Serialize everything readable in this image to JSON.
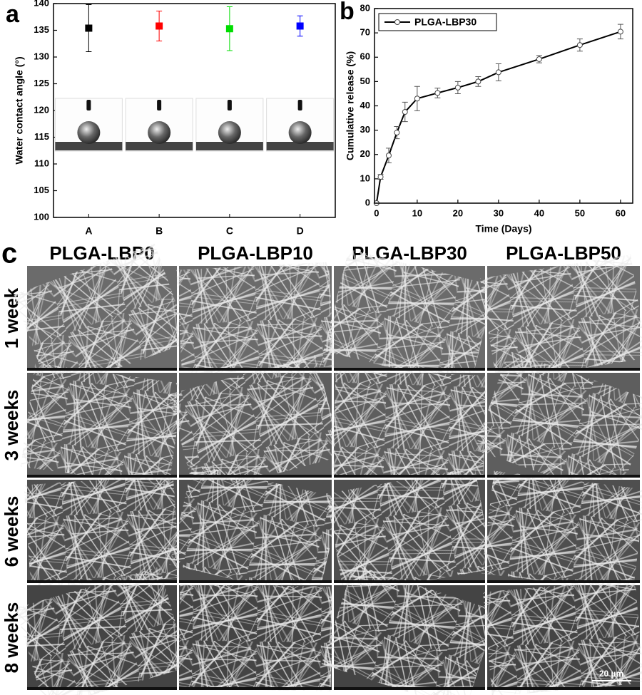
{
  "chart_data": [
    {
      "type": "scatter",
      "panel_label": "a",
      "y_label": "Water contact angle (°)",
      "categories": [
        "A",
        "B",
        "C",
        "D"
      ],
      "values": [
        135.4,
        135.8,
        135.3,
        135.8
      ],
      "errors": [
        4.4,
        2.8,
        4.1,
        1.9
      ],
      "colors": [
        "#000000",
        "#ff0000",
        "#00dd00",
        "#0000ff"
      ],
      "ylim": [
        100,
        140
      ],
      "yticks": [
        100,
        105,
        110,
        115,
        120,
        125,
        130,
        135,
        140
      ]
    },
    {
      "type": "line",
      "panel_label": "b",
      "x_label": "Time (Days)",
      "y_label": "Cumulative release (%)",
      "x": [
        0,
        1,
        3,
        5,
        7,
        10,
        15,
        20,
        25,
        30,
        40,
        50,
        60
      ],
      "series": [
        {
          "name": "PLGA-LBP30",
          "color": "#000000",
          "values": [
            0,
            10.8,
            19.6,
            29,
            37.5,
            43,
            45.3,
            47.5,
            50,
            53.8,
            59.2,
            65,
            70.5
          ],
          "errors": [
            0,
            1,
            3,
            2.5,
            4,
            5,
            2,
            2.5,
            2,
            3.5,
            1.5,
            2.5,
            3
          ]
        }
      ],
      "xlim": [
        -0.5,
        63
      ],
      "xticks": [
        0,
        10,
        20,
        30,
        40,
        50,
        60
      ],
      "ylim": [
        0,
        80
      ],
      "yticks": [
        0,
        10,
        20,
        30,
        40,
        50,
        60,
        70,
        80
      ],
      "legend": "upper left"
    }
  ],
  "sem_panel": {
    "panel_label": "c",
    "columns": [
      "PLGA-LBP0",
      "PLGA-LBP10",
      "PLGA-LBP30",
      "PLGA-LBP50"
    ],
    "rows": [
      "1 week",
      "3 weeks",
      "6 weeks",
      "8 weeks"
    ],
    "scale_bar": "20 µm"
  }
}
